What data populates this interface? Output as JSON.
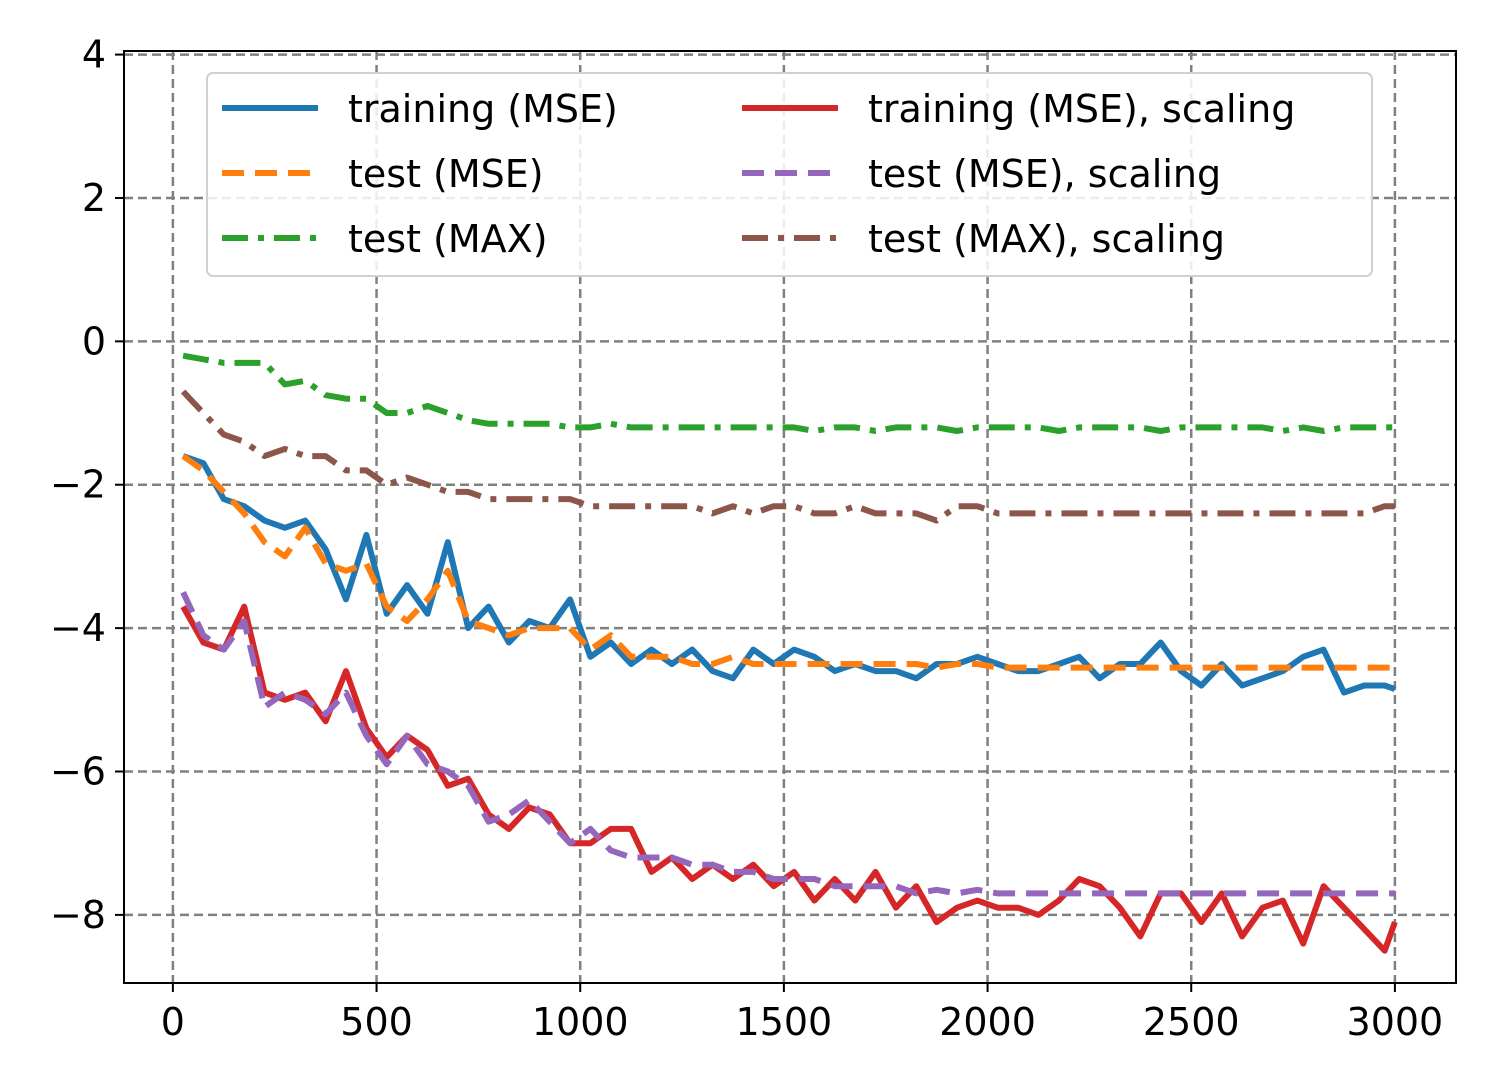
{
  "chart_data": {
    "type": "line",
    "title": "",
    "xlabel": "",
    "ylabel": "",
    "xlim": [
      -120,
      3150
    ],
    "ylim": [
      -8.95,
      4.05
    ],
    "xticks": [
      0,
      500,
      1000,
      1500,
      2000,
      2500,
      3000
    ],
    "yticks": [
      4,
      2,
      0,
      -2,
      -4,
      -6,
      -8
    ],
    "xtick_labels": [
      "0",
      "500",
      "1000",
      "1500",
      "2000",
      "2500",
      "3000"
    ],
    "ytick_labels": [
      "4",
      "2",
      "0",
      "−2",
      "−4",
      "−6",
      "−8"
    ],
    "grid": true,
    "legend_position": "upper center, 2 columns",
    "series": [
      {
        "name": "training (MSE)",
        "color": "#1f77b4",
        "style": "solid",
        "x": [
          25,
          75,
          125,
          175,
          225,
          275,
          325,
          375,
          425,
          475,
          525,
          575,
          625,
          675,
          725,
          775,
          825,
          875,
          925,
          975,
          1025,
          1075,
          1125,
          1175,
          1225,
          1275,
          1325,
          1375,
          1425,
          1475,
          1525,
          1575,
          1625,
          1675,
          1725,
          1775,
          1825,
          1875,
          1925,
          1975,
          2025,
          2075,
          2125,
          2175,
          2225,
          2275,
          2325,
          2375,
          2425,
          2475,
          2525,
          2575,
          2625,
          2675,
          2725,
          2775,
          2825,
          2875,
          2925,
          2975,
          3000
        ],
        "y": [
          -1.6,
          -1.7,
          -2.2,
          -2.3,
          -2.5,
          -2.6,
          -2.5,
          -2.9,
          -3.6,
          -2.7,
          -3.8,
          -3.4,
          -3.8,
          -2.8,
          -4.0,
          -3.7,
          -4.2,
          -3.9,
          -4.0,
          -3.6,
          -4.4,
          -4.2,
          -4.5,
          -4.3,
          -4.5,
          -4.3,
          -4.6,
          -4.7,
          -4.3,
          -4.5,
          -4.3,
          -4.4,
          -4.6,
          -4.5,
          -4.6,
          -4.6,
          -4.7,
          -4.5,
          -4.5,
          -4.4,
          -4.5,
          -4.6,
          -4.6,
          -4.5,
          -4.4,
          -4.7,
          -4.5,
          -4.5,
          -4.2,
          -4.6,
          -4.8,
          -4.5,
          -4.8,
          -4.7,
          -4.6,
          -4.4,
          -4.3,
          -4.9,
          -4.8,
          -4.8,
          -4.85
        ]
      },
      {
        "name": "test (MSE)",
        "color": "#ff7f0e",
        "style": "dashed",
        "x": [
          25,
          75,
          125,
          175,
          225,
          275,
          325,
          375,
          425,
          475,
          525,
          575,
          625,
          675,
          725,
          775,
          825,
          875,
          925,
          975,
          1025,
          1075,
          1125,
          1175,
          1225,
          1275,
          1325,
          1375,
          1425,
          1475,
          1525,
          1575,
          1625,
          1675,
          1725,
          1775,
          1825,
          1875,
          1925,
          1975,
          2025,
          2075,
          2125,
          2175,
          2225,
          2275,
          2325,
          2375,
          2425,
          2475,
          2525,
          2575,
          2625,
          2675,
          2725,
          2775,
          2825,
          2875,
          2925,
          2975,
          3000
        ],
        "y": [
          -1.6,
          -1.8,
          -2.1,
          -2.4,
          -2.8,
          -3.0,
          -2.6,
          -3.1,
          -3.2,
          -3.1,
          -3.7,
          -3.9,
          -3.6,
          -3.2,
          -3.9,
          -4.0,
          -4.1,
          -4.0,
          -4.0,
          -4.0,
          -4.3,
          -4.1,
          -4.4,
          -4.4,
          -4.4,
          -4.5,
          -4.5,
          -4.4,
          -4.5,
          -4.5,
          -4.5,
          -4.5,
          -4.5,
          -4.5,
          -4.5,
          -4.5,
          -4.5,
          -4.55,
          -4.5,
          -4.5,
          -4.55,
          -4.55,
          -4.55,
          -4.55,
          -4.55,
          -4.55,
          -4.55,
          -4.55,
          -4.55,
          -4.55,
          -4.55,
          -4.55,
          -4.55,
          -4.55,
          -4.55,
          -4.55,
          -4.55,
          -4.55,
          -4.55,
          -4.55,
          -4.55
        ]
      },
      {
        "name": "test (MAX)",
        "color": "#2ca02c",
        "style": "dashdot",
        "x": [
          25,
          75,
          125,
          175,
          225,
          275,
          325,
          375,
          425,
          475,
          525,
          575,
          625,
          675,
          725,
          775,
          825,
          875,
          925,
          975,
          1025,
          1075,
          1125,
          1175,
          1225,
          1275,
          1325,
          1375,
          1425,
          1475,
          1525,
          1575,
          1625,
          1675,
          1725,
          1775,
          1825,
          1875,
          1925,
          1975,
          2025,
          2075,
          2125,
          2175,
          2225,
          2275,
          2325,
          2375,
          2425,
          2475,
          2525,
          2575,
          2625,
          2675,
          2725,
          2775,
          2825,
          2875,
          2925,
          2975,
          3000
        ],
        "y": [
          -0.2,
          -0.25,
          -0.3,
          -0.3,
          -0.3,
          -0.6,
          -0.55,
          -0.75,
          -0.8,
          -0.8,
          -1.0,
          -1.0,
          -0.9,
          -1.0,
          -1.1,
          -1.15,
          -1.15,
          -1.15,
          -1.15,
          -1.2,
          -1.2,
          -1.15,
          -1.2,
          -1.2,
          -1.2,
          -1.2,
          -1.2,
          -1.2,
          -1.2,
          -1.2,
          -1.2,
          -1.25,
          -1.2,
          -1.2,
          -1.25,
          -1.2,
          -1.2,
          -1.2,
          -1.25,
          -1.2,
          -1.2,
          -1.2,
          -1.2,
          -1.25,
          -1.2,
          -1.2,
          -1.2,
          -1.2,
          -1.25,
          -1.2,
          -1.2,
          -1.2,
          -1.2,
          -1.2,
          -1.25,
          -1.2,
          -1.25,
          -1.2,
          -1.2,
          -1.2,
          -1.2
        ]
      },
      {
        "name": "training (MSE), scaling",
        "color": "#d62728",
        "style": "solid",
        "x": [
          25,
          75,
          125,
          175,
          225,
          275,
          325,
          375,
          425,
          475,
          525,
          575,
          625,
          675,
          725,
          775,
          825,
          875,
          925,
          975,
          1025,
          1075,
          1125,
          1175,
          1225,
          1275,
          1325,
          1375,
          1425,
          1475,
          1525,
          1575,
          1625,
          1675,
          1725,
          1775,
          1825,
          1875,
          1925,
          1975,
          2025,
          2075,
          2125,
          2175,
          2225,
          2275,
          2325,
          2375,
          2425,
          2475,
          2525,
          2575,
          2625,
          2675,
          2725,
          2775,
          2825,
          2875,
          2925,
          2975,
          3000
        ],
        "y": [
          -3.7,
          -4.2,
          -4.3,
          -3.7,
          -4.9,
          -5.0,
          -4.9,
          -5.3,
          -4.6,
          -5.4,
          -5.8,
          -5.5,
          -5.7,
          -6.2,
          -6.1,
          -6.6,
          -6.8,
          -6.5,
          -6.6,
          -7.0,
          -7.0,
          -6.8,
          -6.8,
          -7.4,
          -7.2,
          -7.5,
          -7.3,
          -7.5,
          -7.3,
          -7.6,
          -7.4,
          -7.8,
          -7.5,
          -7.8,
          -7.4,
          -7.9,
          -7.6,
          -8.1,
          -7.9,
          -7.8,
          -7.9,
          -7.9,
          -8.0,
          -7.8,
          -7.5,
          -7.6,
          -7.9,
          -8.3,
          -7.7,
          -7.7,
          -8.1,
          -7.7,
          -8.3,
          -7.9,
          -7.8,
          -8.4,
          -7.6,
          -7.9,
          -8.2,
          -8.5,
          -8.1
        ]
      },
      {
        "name": "test (MSE), scaling",
        "color": "#9467bd",
        "style": "dashed",
        "x": [
          25,
          75,
          125,
          175,
          225,
          275,
          325,
          375,
          425,
          475,
          525,
          575,
          625,
          675,
          725,
          775,
          825,
          875,
          925,
          975,
          1025,
          1075,
          1125,
          1175,
          1225,
          1275,
          1325,
          1375,
          1425,
          1475,
          1525,
          1575,
          1625,
          1675,
          1725,
          1775,
          1825,
          1875,
          1925,
          1975,
          2025,
          2075,
          2125,
          2175,
          2225,
          2275,
          2325,
          2375,
          2425,
          2475,
          2525,
          2575,
          2625,
          2675,
          2725,
          2775,
          2825,
          2875,
          2925,
          2975,
          3000
        ],
        "y": [
          -3.5,
          -4.1,
          -4.3,
          -3.9,
          -5.1,
          -4.9,
          -5.0,
          -5.2,
          -4.9,
          -5.5,
          -5.9,
          -5.5,
          -5.9,
          -6.0,
          -6.2,
          -6.7,
          -6.6,
          -6.4,
          -6.7,
          -7.0,
          -6.8,
          -7.1,
          -7.2,
          -7.2,
          -7.2,
          -7.3,
          -7.3,
          -7.4,
          -7.4,
          -7.5,
          -7.5,
          -7.5,
          -7.6,
          -7.6,
          -7.6,
          -7.6,
          -7.7,
          -7.65,
          -7.7,
          -7.65,
          -7.7,
          -7.7,
          -7.7,
          -7.7,
          -7.7,
          -7.7,
          -7.7,
          -7.7,
          -7.7,
          -7.7,
          -7.7,
          -7.7,
          -7.7,
          -7.7,
          -7.7,
          -7.7,
          -7.7,
          -7.7,
          -7.7,
          -7.7,
          -7.7
        ]
      },
      {
        "name": "test (MAX), scaling",
        "color": "#8c564b",
        "style": "dashdot",
        "x": [
          25,
          75,
          125,
          175,
          225,
          275,
          325,
          375,
          425,
          475,
          525,
          575,
          625,
          675,
          725,
          775,
          825,
          875,
          925,
          975,
          1025,
          1075,
          1125,
          1175,
          1225,
          1275,
          1325,
          1375,
          1425,
          1475,
          1525,
          1575,
          1625,
          1675,
          1725,
          1775,
          1825,
          1875,
          1925,
          1975,
          2025,
          2075,
          2125,
          2175,
          2225,
          2275,
          2325,
          2375,
          2425,
          2475,
          2525,
          2575,
          2625,
          2675,
          2725,
          2775,
          2825,
          2875,
          2925,
          2975,
          3000
        ],
        "y": [
          -0.7,
          -1.0,
          -1.3,
          -1.4,
          -1.6,
          -1.5,
          -1.6,
          -1.6,
          -1.8,
          -1.8,
          -2.0,
          -1.9,
          -2.0,
          -2.1,
          -2.1,
          -2.2,
          -2.2,
          -2.2,
          -2.2,
          -2.2,
          -2.3,
          -2.3,
          -2.3,
          -2.3,
          -2.3,
          -2.3,
          -2.4,
          -2.3,
          -2.4,
          -2.3,
          -2.3,
          -2.4,
          -2.4,
          -2.3,
          -2.4,
          -2.4,
          -2.4,
          -2.5,
          -2.3,
          -2.3,
          -2.4,
          -2.4,
          -2.4,
          -2.4,
          -2.4,
          -2.4,
          -2.4,
          -2.4,
          -2.4,
          -2.4,
          -2.4,
          -2.4,
          -2.4,
          -2.4,
          -2.4,
          -2.4,
          -2.4,
          -2.4,
          -2.4,
          -2.3,
          -2.3
        ]
      }
    ]
  }
}
